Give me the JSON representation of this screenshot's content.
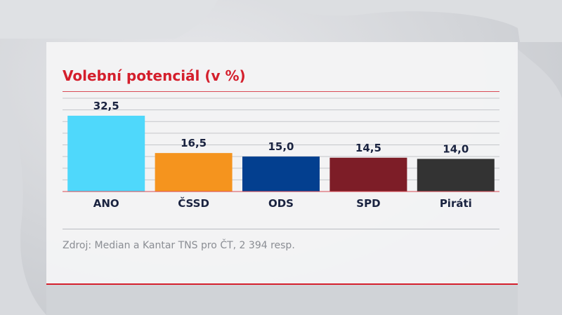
{
  "chart_data": {
    "type": "bar",
    "title": "Volební potenciál (v %)",
    "categories": [
      "ANO",
      "ČSSD",
      "ODS",
      "SPD",
      "Piráti"
    ],
    "values": [
      32.5,
      16.5,
      15.0,
      14.5,
      14.0
    ],
    "value_labels": [
      "32,5",
      "16,5",
      "15,0",
      "14,5",
      "14,0"
    ],
    "colors": [
      "#4fd8fb",
      "#f5941e",
      "#033f8f",
      "#7d1d27",
      "#333333"
    ],
    "ylim": [
      0,
      40
    ],
    "grid": true,
    "xlabel": "",
    "ylabel": ""
  },
  "source": "Zdroj: Median a Kantar TNS pro ČT, 2 394 resp.",
  "colors": {
    "accent": "#d41f2c",
    "panel": "#f4f4f5",
    "text_dark": "#1a2340",
    "source_text": "#8a8d93"
  }
}
